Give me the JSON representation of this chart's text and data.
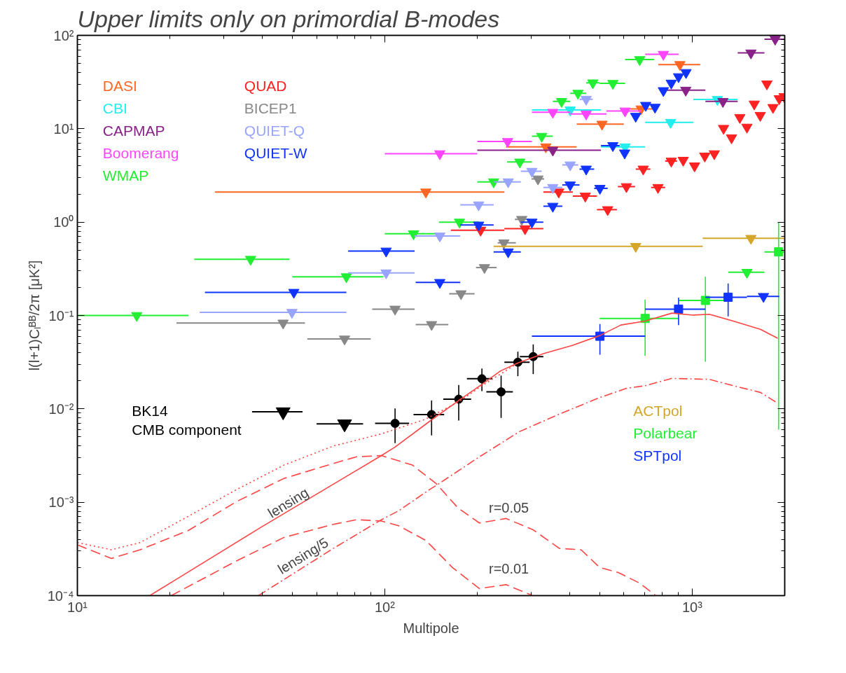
{
  "chart_data": {
    "type": "scatter",
    "title": "Upper limits only on primordial B-modes",
    "xlabel": "Multipole",
    "ylabel": "l(l+1)Cₗᴮᴮ/2π [μK²]",
    "log": "xy",
    "legend": "top left",
    "marker": "triangle",
    "xlim": [
      10,
      2000
    ],
    "ylim": [
      0.0001,
      100
    ],
    "xticks": [
      {
        "value": 10,
        "label": "10¹"
      },
      {
        "value": 100,
        "label": "10²"
      },
      {
        "value": 1000,
        "label": "10³"
      }
    ],
    "yticks": [
      {
        "value": 0.0001,
        "label": "10⁻⁴"
      },
      {
        "value": 0.001,
        "label": "10⁻³"
      },
      {
        "value": 0.01,
        "label": "10⁻²"
      },
      {
        "value": 0.1,
        "label": "10⁻¹"
      },
      {
        "value": 1,
        "label": "10⁰"
      },
      {
        "value": 10,
        "label": "10¹"
      },
      {
        "value": 100,
        "label": "10²"
      }
    ],
    "annotations": [
      "lensing",
      "lensing/5",
      "r=0.05",
      "r=0.01"
    ],
    "series": [
      {
        "name": "DASI",
        "color": "#ff6622",
        "x": [
          136,
          334,
          509,
          682,
          912
        ],
        "values": [
          2.1,
          6.4,
          11.2,
          16.3,
          48.7
        ],
        "xerrors": [
          [
            28,
            245
          ],
          [
            248,
            421
          ],
          [
            421,
            599
          ],
          [
            624,
            769
          ],
          [
            776,
            1062
          ]
        ]
      },
      {
        "name": "CBI",
        "color": "#22eeee",
        "x": [
          401,
          605,
          851,
          1208
        ],
        "values": [
          15.9,
          6.4,
          11.7,
          20.6
        ],
        "xerrors": [
          [
            301,
            505
          ],
          [
            505,
            703
          ],
          [
            703,
            1009
          ],
          [
            1009,
            1406
          ]
        ]
      },
      {
        "name": "CAPMAP",
        "color": "#882288",
        "x": [
          352,
          953,
          1259,
          1553,
          1862
        ],
        "values": [
          5.9,
          25.9,
          19.6,
          64.8,
          91
        ],
        "xerrors": [
          [
            200,
            505
          ],
          [
            817,
            1104
          ],
          [
            1104,
            1406
          ],
          [
            1406,
            1718
          ],
          [
            1718,
            2000
          ]
        ]
      },
      {
        "name": "Boomerang",
        "color": "#ff44ff",
        "x": [
          151,
          251,
          352,
          452,
          605,
          806
        ],
        "values": [
          5.4,
          7.3,
          15.0,
          14.4,
          15.5,
          62.7
        ],
        "xerrors": [
          [
            100,
            200
          ],
          [
            200,
            301
          ],
          [
            301,
            401
          ],
          [
            401,
            526
          ],
          [
            526,
            682
          ],
          [
            703,
            903
          ]
        ]
      },
      {
        "name": "WMAP",
        "color": "#22ee33",
        "x": [
          15.6,
          36.6,
          75,
          124,
          175,
          226,
          275,
          324,
          376,
          425,
          475,
          552,
          675
        ],
        "values": [
          0.1,
          0.4,
          0.26,
          0.75,
          1.0,
          2.7,
          4.4,
          8.3,
          19.6,
          24,
          31,
          30.6,
          55
        ],
        "xerrors": [
          [
            10,
            23
          ],
          [
            24,
            49
          ],
          [
            50,
            99
          ],
          [
            100,
            147
          ],
          [
            150,
            203
          ],
          [
            200,
            248
          ],
          [
            250,
            301
          ],
          [
            301,
            352
          ],
          [
            352,
            401
          ],
          [
            401,
            452
          ],
          [
            452,
            500
          ],
          [
            500,
            605
          ],
          [
            605,
            753
          ]
        ]
      },
      {
        "name": "QUAD",
        "color": "#ff2222",
        "x": [
          205,
          286,
          368,
          449,
          531,
          611,
          693,
          774,
          855,
          935,
          1018,
          1099,
          1180,
          1265,
          1343,
          1429,
          1507,
          1592,
          1665,
          1750,
          1832,
          1920,
          1990
        ],
        "values": [
          0.82,
          0.85,
          2.1,
          1.9,
          1.36,
          2.4,
          3.7,
          2.35,
          4.5,
          4.6,
          4.0,
          5.1,
          5.4,
          10.1,
          8.0,
          13.2,
          10.4,
          18.4,
          13.9,
          30.2,
          16.9,
          21.0,
          22.1
        ],
        "xerrors": [
          [
            164,
            245
          ],
          [
            245,
            328
          ],
          [
            328,
            409
          ],
          [
            409,
            490
          ],
          [
            490,
            569
          ],
          [
            573,
            652
          ],
          [
            655,
            731
          ],
          [
            735,
            817
          ],
          [
            817,
            893
          ],
          null,
          null,
          null,
          null,
          null,
          null,
          null,
          null,
          null,
          null,
          null,
          null,
          null,
          null
        ]
      },
      {
        "name": "BICEP1",
        "color": "#888888",
        "x": [
          46.7,
          74,
          108,
          142,
          177,
          211,
          244,
          279,
          315
        ],
        "values": [
          0.083,
          0.056,
          0.117,
          0.08,
          0.171,
          0.326,
          0.6,
          1.07,
          2.9
        ],
        "xerrors": [
          [
            21,
            55
          ],
          [
            56,
            90
          ],
          [
            91,
            125
          ],
          [
            126,
            161
          ],
          [
            162,
            196
          ],
          [
            198,
            231
          ],
          [
            233,
            267
          ],
          [
            265,
            295
          ],
          [
            300,
            330
          ]
        ]
      },
      {
        "name": "QUIET-Q",
        "color": "#99a4ff",
        "x": [
          49.9,
          101,
          151,
          202,
          252,
          301,
          352,
          401,
          452
        ],
        "values": [
          0.108,
          0.286,
          0.71,
          1.53,
          2.7,
          3.5,
          2.35,
          4.1,
          20.7
        ],
        "xerrors": [
          [
            25,
            75
          ],
          [
            76,
            125
          ],
          [
            125,
            176
          ],
          [
            176,
            226
          ],
          [
            226,
            277
          ],
          [
            277,
            324
          ],
          [
            328,
            378
          ],
          [
            378,
            426
          ],
          [
            430,
            475
          ]
        ]
      },
      {
        "name": "QUIET-W",
        "color": "#1133ff",
        "x": [
          50.6,
          101,
          151,
          202,
          252,
          301,
          352,
          401,
          452,
          501,
          552,
          603,
          655,
          706,
          757,
          806,
          855,
          903,
          955
        ],
        "values": [
          0.177,
          0.49,
          0.226,
          0.93,
          0.48,
          1.0,
          1.48,
          2.5,
          3.7,
          2.3,
          6.6,
          5.5,
          13.6,
          17.8,
          17.0,
          25.6,
          30.8,
          36.1,
          40
        ],
        "xerrors": [
          [
            26,
            75
          ],
          [
            76,
            125
          ],
          [
            126,
            176
          ],
          [
            176,
            226
          ],
          [
            226,
            277
          ],
          [
            277,
            328
          ],
          [
            328,
            378
          ],
          [
            378,
            430
          ],
          [
            430,
            480
          ],
          [
            480,
            531
          ],
          [
            505,
            581
          ],
          null,
          null,
          null,
          null,
          null,
          null,
          null,
          null
        ]
      },
      {
        "name": "ACTpol",
        "color": "#d4a62a",
        "x": [
          655,
          1553
        ],
        "values": [
          0.55,
          0.67
        ],
        "xerrors": [
          [
            226,
            1082
          ],
          [
            1082,
            2000
          ]
        ]
      },
      {
        "name": "Polarbear",
        "color": "#22ee33",
        "marker": "square",
        "x": [
          703,
          1104,
          1910
        ],
        "values": [
          0.093,
          0.145,
          0.48
        ],
        "xerrors": [
          [
            500,
            903
          ],
          [
            903,
            1349
          ],
          [
            1718,
            2000
          ]
        ],
        "errors": [
          [
            0.037,
            0.148
          ],
          [
            0.032,
            0.26
          ],
          [
            0.006,
            1.0
          ]
        ]
      },
      {
        "name": "SPTpol",
        "color": "#1133ff",
        "marker": "square",
        "x": [
          501,
          903,
          1309
        ],
        "values": [
          0.06,
          0.117,
          0.157
        ],
        "xerrors": [
          [
            301,
            703
          ],
          [
            703,
            1104
          ],
          [
            1104,
            1507
          ]
        ],
        "errors": [
          [
            0.038,
            0.081
          ],
          [
            0.079,
            0.155
          ],
          [
            0.098,
            0.22
          ]
        ]
      },
      {
        "name": "BK14\nCMB component",
        "color": "#000000",
        "marker": "circle",
        "x": [
          108,
          142,
          174,
          207,
          239,
          271,
          304
        ],
        "values": [
          0.007,
          0.0087,
          0.0127,
          0.021,
          0.0152,
          0.0316,
          0.0363
        ],
        "xerrors": [
          [
            93,
            120
          ],
          [
            124,
            156
          ],
          [
            155,
            191
          ],
          [
            185,
            224
          ],
          [
            214,
            261
          ],
          [
            245,
            296
          ],
          [
            275,
            328
          ]
        ],
        "errors": [
          [
            0.0043,
            0.0101
          ],
          [
            0.0052,
            0.0123
          ],
          [
            0.0075,
            0.018
          ],
          [
            0.0155,
            0.027
          ],
          [
            0.008,
            0.0227
          ],
          [
            0.0224,
            0.041
          ],
          [
            0.0236,
            0.049
          ]
        ]
      },
      {
        "color": "#22ee33",
        "x": [
          1507
        ],
        "values": [
          0.29
        ],
        "xerrors": [
          [
            1310,
            1718
          ]
        ]
      },
      {
        "color": "#1133ff",
        "x": [
          1706
        ],
        "values": [
          0.16
        ],
        "xerrors": [
          [
            1507,
            1920
          ]
        ]
      },
      {
        "color": "#000000",
        "x": [
          46.7,
          74
        ],
        "values": [
          0.0093,
          0.0069
        ],
        "xerrors": [
          [
            37,
            54
          ],
          [
            60,
            85
          ]
        ]
      },
      {
        "type": "line",
        "marker": "none",
        "color": "#ff4444",
        "line_style": "solid",
        "x": [
          17.2,
          39.4,
          97.5,
          108,
          141,
          174,
          207,
          238,
          272,
          328,
          409,
          501,
          586,
          703,
          859,
          1009,
          1138,
          1361,
          1667,
          1897
        ],
        "values": [
          0.0001,
          0.000535,
          0.00316,
          0.0039,
          0.0075,
          0.0123,
          0.0183,
          0.0255,
          0.0312,
          0.039,
          0.048,
          0.061,
          0.079,
          0.087,
          0.106,
          0.101,
          0.103,
          0.087,
          0.071,
          0.057
        ]
      },
      {
        "type": "line",
        "marker": "none",
        "color": "#ff4444",
        "line_style": "dotted",
        "x": [
          10,
          12.9,
          16,
          23,
          33,
          47,
          68,
          97.5,
          135,
          141,
          174,
          207,
          272
        ],
        "values": [
          0.00037,
          0.00031,
          0.00037,
          0.00071,
          0.00137,
          0.0025,
          0.004,
          0.0054,
          0.0077,
          0.0083,
          0.0119,
          0.0177,
          0.0312
        ]
      },
      {
        "type": "line",
        "marker": "none",
        "color": "#ff4444",
        "line_style": "dashed",
        "x": [
          10,
          12.9,
          16,
          23,
          33,
          47,
          68,
          81,
          97.5,
          123,
          147,
          173,
          203,
          248,
          303,
          370,
          435,
          500,
          575,
          675,
          762
        ],
        "values": [
          0.00035,
          0.00025,
          0.00031,
          0.0005,
          0.00102,
          0.0018,
          0.0026,
          0.00307,
          0.00316,
          0.0025,
          0.00158,
          0.00087,
          0.0006,
          0.00067,
          0.00051,
          0.00032,
          0.00031,
          0.0002,
          0.000177,
          0.000136,
          0.0001
        ]
      },
      {
        "type": "line",
        "marker": "none",
        "color": "#ff4444",
        "line_style": "dashed",
        "x": [
          20.2,
          33,
          47,
          68,
          81,
          97.5,
          111,
          136,
          166,
          203,
          248,
          303
        ],
        "values": [
          0.0001,
          0.000236,
          0.00042,
          0.00058,
          0.00065,
          0.00063,
          0.00056,
          0.00039,
          0.0002,
          0.000119,
          0.000131,
          0.0001
        ]
      },
      {
        "type": "line",
        "marker": "none",
        "color": "#ff4444",
        "line_style": "dashdot",
        "x": [
          38.8,
          68,
          97.5,
          111,
          140,
          150,
          203,
          274,
          370,
          500,
          611,
          703,
          859,
          1138,
          1361,
          1667,
          1897
        ],
        "values": [
          0.0001,
          0.00032,
          0.00065,
          0.00081,
          0.00137,
          0.00158,
          0.00306,
          0.0057,
          0.0088,
          0.0132,
          0.0166,
          0.0177,
          0.0212,
          0.0207,
          0.0177,
          0.015,
          0.0115
        ]
      }
    ]
  }
}
